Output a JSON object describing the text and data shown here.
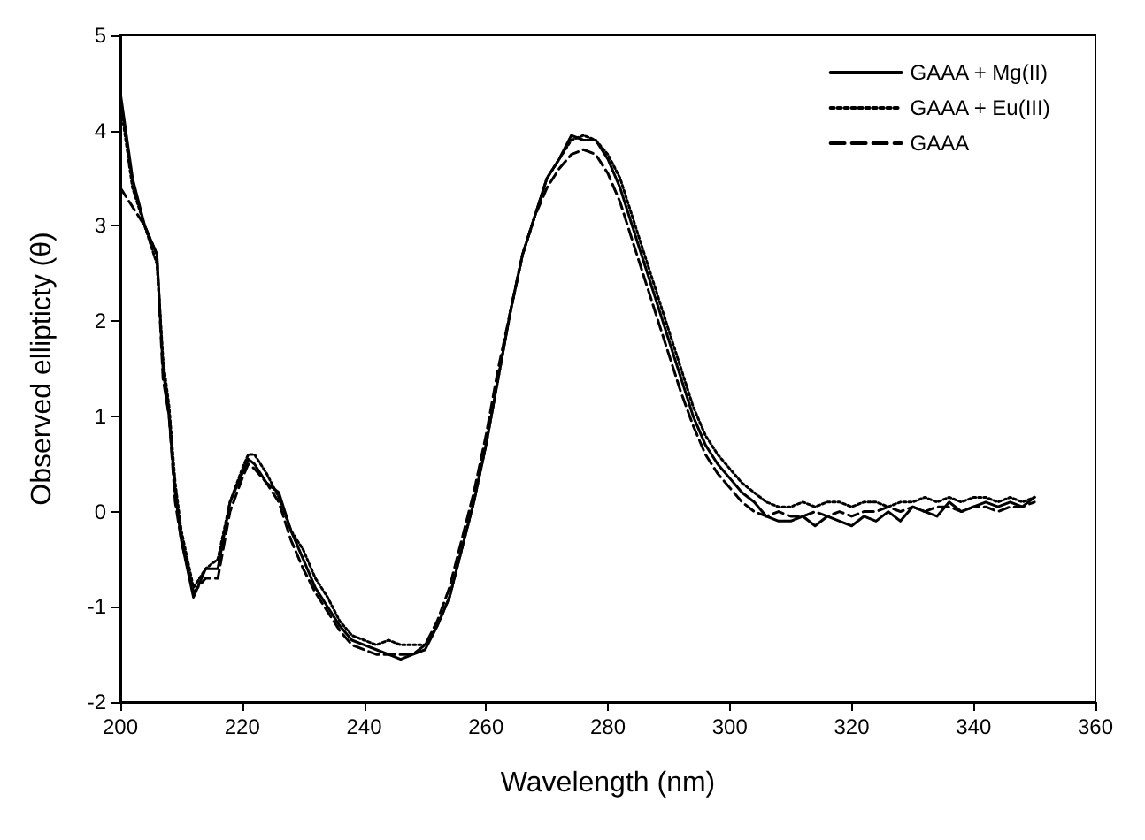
{
  "chart_data": {
    "type": "line",
    "xlabel": "Wavelength (nm)",
    "ylabel": "Observed ellipticty (θ)",
    "xlim": [
      200,
      360
    ],
    "xticks": [
      200,
      220,
      240,
      260,
      280,
      300,
      320,
      340,
      360
    ],
    "ylim": [
      -2,
      5
    ],
    "yticks": [
      -2,
      -1,
      0,
      1,
      2,
      3,
      4,
      5
    ],
    "grid": false,
    "legend": "top right",
    "marker": "none",
    "x": [
      200,
      202,
      204,
      206,
      207,
      208,
      209,
      210,
      212,
      214,
      216,
      218,
      220,
      221,
      222,
      224,
      226,
      228,
      230,
      232,
      234,
      236,
      238,
      240,
      242,
      244,
      246,
      248,
      250,
      252,
      254,
      256,
      258,
      260,
      262,
      264,
      266,
      268,
      270,
      272,
      274,
      276,
      278,
      280,
      282,
      284,
      286,
      288,
      290,
      292,
      294,
      296,
      298,
      300,
      302,
      304,
      306,
      308,
      310,
      312,
      314,
      316,
      318,
      320,
      322,
      324,
      326,
      328,
      330,
      332,
      334,
      336,
      338,
      340,
      342,
      344,
      346,
      348,
      350
    ],
    "series": [
      {
        "name": "GAAA + Mg(II)",
        "color": "#000000",
        "line_style": "solid",
        "values": [
          4.4,
          3.5,
          3.0,
          2.7,
          1.5,
          1.0,
          0.2,
          -0.3,
          -0.9,
          -0.6,
          -0.6,
          0.1,
          0.4,
          0.55,
          0.5,
          0.3,
          0.2,
          -0.2,
          -0.5,
          -0.8,
          -1.0,
          -1.2,
          -1.35,
          -1.4,
          -1.45,
          -1.5,
          -1.55,
          -1.5,
          -1.45,
          -1.2,
          -0.9,
          -0.4,
          0.1,
          0.7,
          1.4,
          2.1,
          2.7,
          3.1,
          3.5,
          3.7,
          3.95,
          3.9,
          3.9,
          3.7,
          3.4,
          3.0,
          2.6,
          2.2,
          1.8,
          1.4,
          1.0,
          0.7,
          0.5,
          0.35,
          0.2,
          0.1,
          -0.05,
          -0.1,
          -0.1,
          -0.05,
          -0.15,
          -0.05,
          -0.1,
          -0.15,
          -0.05,
          -0.1,
          0.0,
          -0.1,
          0.05,
          0.0,
          -0.05,
          0.1,
          0.0,
          0.05,
          0.1,
          0.05,
          0.1,
          0.05,
          0.15
        ]
      },
      {
        "name": "GAAA + Eu(III)",
        "color": "#000000",
        "line_style": "dotted",
        "values": [
          4.3,
          3.4,
          3.0,
          2.6,
          1.6,
          1.1,
          0.3,
          -0.2,
          -0.8,
          -0.6,
          -0.5,
          0.1,
          0.45,
          0.6,
          0.6,
          0.4,
          0.15,
          -0.2,
          -0.4,
          -0.7,
          -0.9,
          -1.15,
          -1.3,
          -1.35,
          -1.4,
          -1.35,
          -1.4,
          -1.4,
          -1.4,
          -1.2,
          -0.9,
          -0.4,
          0.1,
          0.7,
          1.4,
          2.1,
          2.7,
          3.1,
          3.5,
          3.7,
          3.9,
          3.95,
          3.9,
          3.75,
          3.5,
          3.1,
          2.7,
          2.3,
          1.9,
          1.5,
          1.1,
          0.8,
          0.6,
          0.45,
          0.3,
          0.2,
          0.1,
          0.05,
          0.05,
          0.1,
          0.05,
          0.1,
          0.1,
          0.05,
          0.1,
          0.1,
          0.05,
          0.1,
          0.1,
          0.15,
          0.1,
          0.15,
          0.1,
          0.15,
          0.15,
          0.1,
          0.15,
          0.1,
          0.15
        ]
      },
      {
        "name": "GAAA",
        "color": "#000000",
        "line_style": "dashed",
        "values": [
          3.4,
          3.2,
          3.0,
          2.7,
          1.4,
          1.0,
          0.1,
          -0.3,
          -0.85,
          -0.7,
          -0.7,
          0.0,
          0.35,
          0.5,
          0.45,
          0.3,
          0.1,
          -0.3,
          -0.6,
          -0.85,
          -1.05,
          -1.25,
          -1.4,
          -1.45,
          -1.5,
          -1.5,
          -1.5,
          -1.5,
          -1.4,
          -1.15,
          -0.8,
          -0.3,
          0.2,
          0.8,
          1.5,
          2.1,
          2.7,
          3.1,
          3.4,
          3.6,
          3.75,
          3.8,
          3.75,
          3.55,
          3.25,
          2.85,
          2.45,
          2.05,
          1.65,
          1.25,
          0.9,
          0.6,
          0.4,
          0.25,
          0.1,
          0.0,
          -0.05,
          0.0,
          -0.05,
          -0.05,
          0.0,
          -0.05,
          0.0,
          -0.05,
          0.0,
          0.0,
          0.05,
          0.0,
          0.05,
          0.0,
          0.05,
          0.05,
          0.0,
          0.05,
          0.05,
          0.0,
          0.05,
          0.05,
          0.1
        ]
      }
    ]
  }
}
